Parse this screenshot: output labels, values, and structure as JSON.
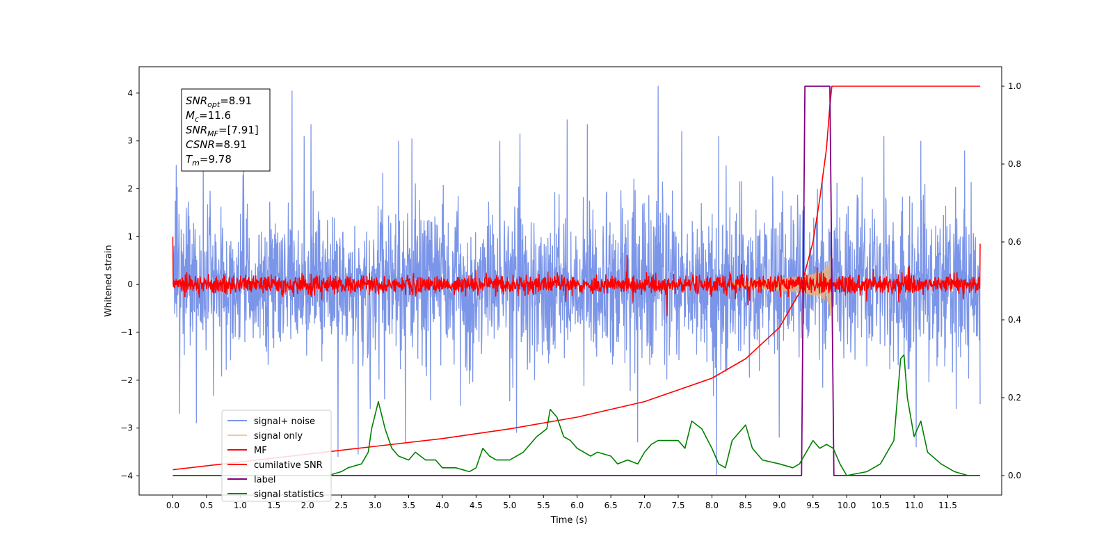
{
  "chart_data": {
    "type": "line",
    "xlabel": "Time (s)",
    "ylabel": "Whitened strain",
    "xlim": [
      -0.5,
      12.3
    ],
    "ylim": [
      -4.4,
      4.55
    ],
    "y2lim": [
      -0.05,
      1.05
    ],
    "grid": false,
    "legend_position": "lower-left",
    "x_ticks": [
      0.0,
      0.5,
      1.0,
      1.5,
      2.0,
      2.5,
      3.0,
      3.5,
      4.0,
      4.5,
      5.0,
      5.5,
      6.0,
      6.5,
      7.0,
      7.5,
      8.0,
      8.5,
      9.0,
      9.5,
      10.0,
      10.5,
      11.0,
      11.5
    ],
    "x_tick_labels": [
      "0.0",
      "0.5",
      "1.0",
      "1.5",
      "2.0",
      "2.5",
      "3.0",
      "3.5",
      "4.0",
      "4.5",
      "5.0",
      "5.5",
      "6.0",
      "6.5",
      "7.0",
      "7.5",
      "8.0",
      "8.5",
      "9.0",
      "9.5",
      "10.0",
      "10.5",
      "11.0",
      "11.5"
    ],
    "y_ticks": [
      -4,
      -3,
      -2,
      -1,
      0,
      1,
      2,
      3,
      4
    ],
    "y_tick_labels": [
      "−4",
      "−3",
      "−2",
      "−1",
      "0",
      "1",
      "2",
      "3",
      "4"
    ],
    "y2_ticks": [
      0.0,
      0.2,
      0.4,
      0.6,
      0.8,
      1.0
    ],
    "y2_tick_labels": [
      "0.0",
      "0.2",
      "0.4",
      "0.6",
      "0.8",
      "1.0"
    ],
    "annotation": {
      "lines": [
        {
          "sym": "SNR",
          "sub": "opt",
          "val": "=8.91"
        },
        {
          "sym": "M",
          "sub": "c",
          "val": "=11.6"
        },
        {
          "sym": "SNR",
          "sub": "MF",
          "val": "=[7.91]"
        },
        {
          "sym": "CSNR",
          "sub": "",
          "val": "=8.91"
        },
        {
          "sym": "T",
          "sub": "m",
          "val": "=9.78"
        }
      ]
    },
    "series": [
      {
        "name": "signal+ noise",
        "color": "#7b95e8",
        "axis": "left",
        "x_range": [
          0.0,
          11.98
        ],
        "noise_sigma": 0.8,
        "spikes": [
          [
            0.05,
            2.5
          ],
          [
            0.45,
            2.6
          ],
          [
            1.05,
            2.5
          ],
          [
            1.77,
            4.05
          ],
          [
            1.95,
            3.1
          ],
          [
            2.05,
            3.35
          ],
          [
            3.35,
            3.0
          ],
          [
            3.55,
            3.05
          ],
          [
            4.85,
            3.0
          ],
          [
            5.15,
            3.15
          ],
          [
            5.85,
            3.45
          ],
          [
            6.15,
            3.35
          ],
          [
            7.2,
            4.15
          ],
          [
            7.55,
            3.2
          ],
          [
            8.1,
            3.1
          ],
          [
            10.55,
            3.1
          ],
          [
            11.1,
            3.0
          ],
          [
            11.75,
            2.8
          ],
          [
            0.1,
            -2.7
          ],
          [
            0.35,
            -2.9
          ],
          [
            2.45,
            -3.6
          ],
          [
            2.75,
            -3.55
          ],
          [
            3.45,
            -3.3
          ],
          [
            5.1,
            -3.1
          ],
          [
            6.9,
            -3.3
          ],
          [
            8.07,
            -4.0
          ],
          [
            9.0,
            -3.2
          ],
          [
            11.03,
            -3.4
          ],
          [
            11.98,
            -2.5
          ]
        ]
      },
      {
        "name": "signal only",
        "color": "#e8b07a",
        "axis": "left",
        "chirp_start": 8.3,
        "merger_time": 9.76,
        "peak_amplitude": 0.75
      },
      {
        "name": "MF",
        "color": "#ff0000",
        "axis": "left",
        "x_range": [
          0.0,
          11.98
        ],
        "noise_sigma": 0.1,
        "edge_values": [
          1.0,
          0.85
        ]
      },
      {
        "name": "cumilative SNR",
        "color": "#ff0000",
        "axis": "right",
        "x": [
          0.0,
          1.0,
          2.0,
          3.0,
          4.0,
          5.0,
          6.0,
          7.0,
          8.0,
          8.5,
          9.0,
          9.3,
          9.5,
          9.6,
          9.7,
          9.75,
          9.78,
          11.98
        ],
        "values": [
          0.015,
          0.035,
          0.055,
          0.075,
          0.095,
          0.12,
          0.15,
          0.19,
          0.25,
          0.3,
          0.38,
          0.47,
          0.6,
          0.71,
          0.84,
          0.95,
          1.0,
          1.0
        ]
      },
      {
        "name": "label",
        "color": "#800080",
        "axis": "right",
        "x": [
          0.0,
          9.33,
          9.38,
          9.75,
          9.81,
          11.98
        ],
        "values": [
          0.0,
          0.0,
          1.0,
          1.0,
          0.0,
          0.0
        ]
      },
      {
        "name": "signal statistics",
        "color": "#008000",
        "axis": "right",
        "x": [
          0.0,
          0.5,
          1.0,
          1.5,
          2.0,
          2.3,
          2.5,
          2.6,
          2.8,
          2.9,
          2.95,
          3.05,
          3.15,
          3.25,
          3.35,
          3.5,
          3.6,
          3.75,
          3.9,
          4.0,
          4.2,
          4.4,
          4.5,
          4.6,
          4.7,
          4.8,
          5.0,
          5.2,
          5.4,
          5.55,
          5.6,
          5.7,
          5.8,
          5.9,
          6.0,
          6.2,
          6.3,
          6.5,
          6.6,
          6.75,
          6.9,
          7.0,
          7.1,
          7.2,
          7.35,
          7.5,
          7.6,
          7.7,
          7.85,
          8.0,
          8.1,
          8.2,
          8.3,
          8.5,
          8.6,
          8.75,
          9.0,
          9.2,
          9.3,
          9.5,
          9.6,
          9.7,
          9.8,
          9.9,
          10.0,
          10.3,
          10.5,
          10.7,
          10.8,
          10.85,
          10.9,
          11.0,
          11.1,
          11.2,
          11.4,
          11.6,
          11.8,
          11.98
        ],
        "values": [
          0.0,
          0.0,
          0.0,
          0.0,
          0.0,
          0.0,
          0.01,
          0.02,
          0.03,
          0.06,
          0.12,
          0.19,
          0.12,
          0.07,
          0.05,
          0.04,
          0.06,
          0.04,
          0.04,
          0.02,
          0.02,
          0.01,
          0.02,
          0.07,
          0.05,
          0.04,
          0.04,
          0.06,
          0.1,
          0.12,
          0.17,
          0.15,
          0.1,
          0.09,
          0.07,
          0.05,
          0.06,
          0.05,
          0.03,
          0.04,
          0.03,
          0.06,
          0.08,
          0.09,
          0.09,
          0.09,
          0.07,
          0.14,
          0.12,
          0.07,
          0.03,
          0.02,
          0.09,
          0.13,
          0.07,
          0.04,
          0.03,
          0.02,
          0.03,
          0.09,
          0.07,
          0.08,
          0.07,
          0.03,
          0.0,
          0.01,
          0.03,
          0.09,
          0.3,
          0.31,
          0.2,
          0.1,
          0.14,
          0.06,
          0.03,
          0.01,
          0.0,
          0.0
        ]
      }
    ]
  }
}
